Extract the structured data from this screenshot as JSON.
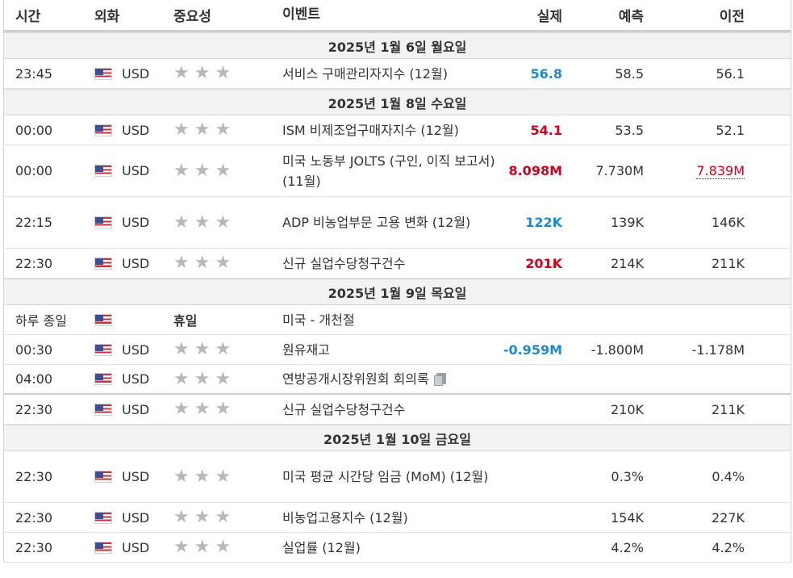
{
  "header": {
    "time": "시간",
    "currency": "외화",
    "importance": "중요성",
    "event": "이벤트",
    "actual": "실제",
    "forecast": "예측",
    "previous": "이전"
  },
  "days": [
    {
      "date": "2025년 1월 6일 월요일",
      "events": [
        {
          "time": "23:45",
          "currency": "USD",
          "event": "서비스 구매관리자지수 (12월)",
          "actual": "56.8",
          "actual_trend": "negative",
          "forecast": "58.5",
          "previous": "56.1"
        }
      ]
    },
    {
      "date": "2025년 1월 8일 수요일",
      "events": [
        {
          "time": "00:00",
          "currency": "USD",
          "event": "ISM 비제조업구매자지수 (12월)",
          "actual": "54.1",
          "actual_trend": "positive",
          "forecast": "53.5",
          "previous": "52.1"
        },
        {
          "time": "00:00",
          "currency": "USD",
          "event": "미국 노동부 JOLTS (구인, 이직 보고서) (11월)",
          "actual": "8.098M",
          "actual_trend": "positive",
          "forecast": "7.730M",
          "previous": "7.839M",
          "previous_revised": true
        },
        {
          "time": "22:15",
          "currency": "USD",
          "event": "ADP 비농업부문 고용 변화 (12월)",
          "actual": "122K",
          "actual_trend": "negative",
          "forecast": "139K",
          "previous": "146K"
        },
        {
          "time": "22:30",
          "currency": "USD",
          "event": "신규 실업수당청구건수",
          "actual": "201K",
          "actual_trend": "positive",
          "forecast": "214K",
          "previous": "211K"
        }
      ]
    },
    {
      "date": "2025년 1월 9일 목요일",
      "events": [
        {
          "time": "하루 종일",
          "currency": "",
          "holiday_label": "휴일",
          "event": "미국 - 개천절",
          "actual": "",
          "forecast": "",
          "previous": ""
        },
        {
          "time": "00:30",
          "currency": "USD",
          "event": "원유재고",
          "actual": "-0.959M",
          "actual_trend": "negative",
          "forecast": "-1.800M",
          "previous": "-1.178M"
        },
        {
          "time": "04:00",
          "currency": "USD",
          "event": "연방공개시장위원회 회의록",
          "actual": "",
          "forecast": "",
          "previous": ""
        },
        {
          "time": "22:30",
          "currency": "USD",
          "event": "신규 실업수당청구건수",
          "actual": "",
          "forecast": "210K",
          "previous": "211K"
        }
      ]
    },
    {
      "date": "2025년 1월 10일 금요일",
      "events": [
        {
          "time": "22:30",
          "currency": "USD",
          "event": "미국 평균 시간당 임금 (MoM) (12월)",
          "actual": "",
          "forecast": "0.3%",
          "previous": "0.4%"
        },
        {
          "time": "22:30",
          "currency": "USD",
          "event": "비농업고용지수 (12월)",
          "actual": "",
          "forecast": "154K",
          "previous": "227K"
        },
        {
          "time": "22:30",
          "currency": "USD",
          "event": "실업률 (12월)",
          "actual": "",
          "forecast": "4.2%",
          "previous": "4.2%"
        }
      ]
    }
  ],
  "icons": {
    "star": "star-icon",
    "flag": "us-flag-icon",
    "document": "document-icon"
  },
  "colors": {
    "positive": "#d0021b",
    "negative": "#1a8ad6"
  }
}
